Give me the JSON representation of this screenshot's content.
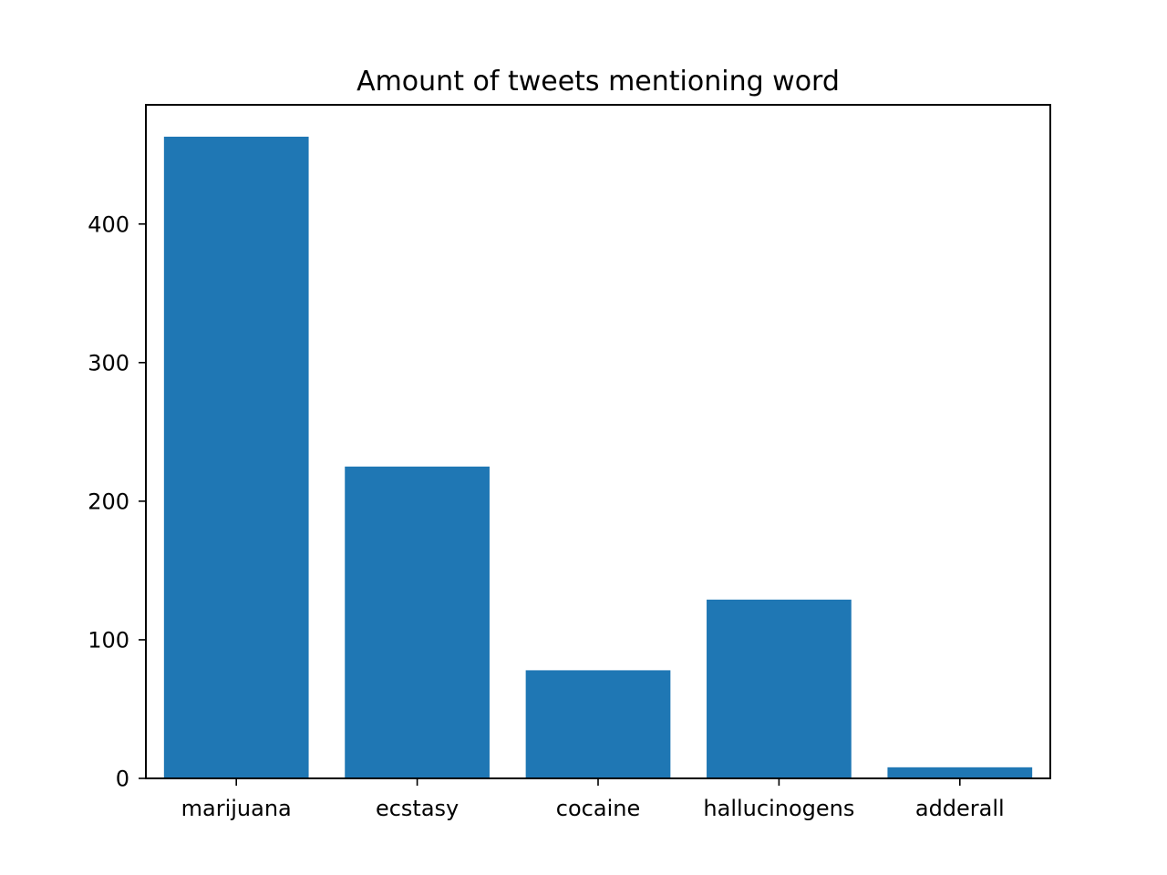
{
  "chart_data": {
    "type": "bar",
    "title": "Amount of tweets mentioning word",
    "xlabel": "",
    "ylabel": "",
    "categories": [
      "marijuana",
      "ecstasy",
      "cocaine",
      "hallucinogens",
      "adderall"
    ],
    "values": [
      463,
      225,
      78,
      129,
      8
    ],
    "ylim": [
      0,
      486
    ],
    "yticks": [
      0,
      100,
      200,
      300,
      400
    ],
    "grid": false,
    "legend": "none",
    "bar_color": "#1f77b4"
  }
}
